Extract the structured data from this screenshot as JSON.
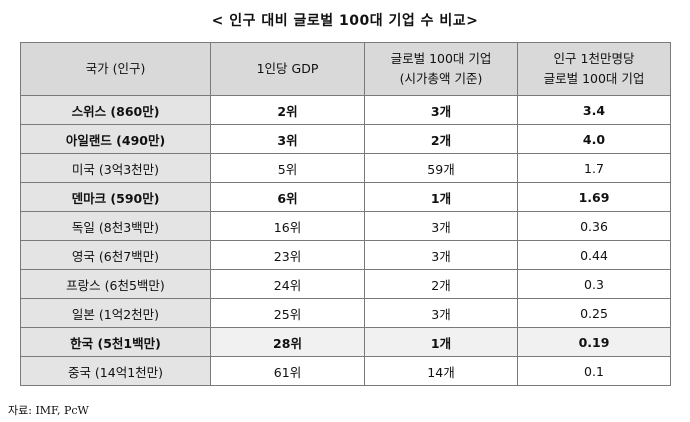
{
  "title": "< 인구 대비 글로벌 100대 기업 수 비교>",
  "headers": [
    "국가 (인구)",
    "1인당 GDP",
    "글로벌 100대 기업\n(시가총액 기준)",
    "인구 1천만명당\n글로벌 100대 기업"
  ],
  "rows": [
    {
      "country": "스위스 (860만)",
      "gdp": "2위",
      "companies": "3개",
      "per10m": "3.4",
      "bold": true
    },
    {
      "country": "아일랜드 (490만)",
      "gdp": "3위",
      "companies": "2개",
      "per10m": "4.0",
      "bold": true
    },
    {
      "country": "미국 (3억3천만)",
      "gdp": "5위",
      "companies": "59개",
      "per10m": "1.7",
      "bold": false
    },
    {
      "country": "덴마크 (590만)",
      "gdp": "6위",
      "companies": "1개",
      "per10m": "1.69",
      "bold": true
    },
    {
      "country": "독일 (8천3백만)",
      "gdp": "16위",
      "companies": "3개",
      "per10m": "0.36",
      "bold": false
    },
    {
      "country": "영국 (6천7백만)",
      "gdp": "23위",
      "companies": "3개",
      "per10m": "0.44",
      "bold": false
    },
    {
      "country": "프랑스 (6천5백만)",
      "gdp": "24위",
      "companies": "2개",
      "per10m": "0.3",
      "bold": false
    },
    {
      "country": "일본 (1억2천만)",
      "gdp": "25위",
      "companies": "3개",
      "per10m": "0.25",
      "bold": false
    },
    {
      "country": "한국 (5천1백만)",
      "gdp": "28위",
      "companies": "1개",
      "per10m": "0.19",
      "bold": true,
      "highlight": true
    },
    {
      "country": "중국 (14억1천만)",
      "gdp": "61위",
      "companies": "14개",
      "per10m": "0.1",
      "bold": false
    }
  ],
  "source": "자료: IMF, PcW"
}
